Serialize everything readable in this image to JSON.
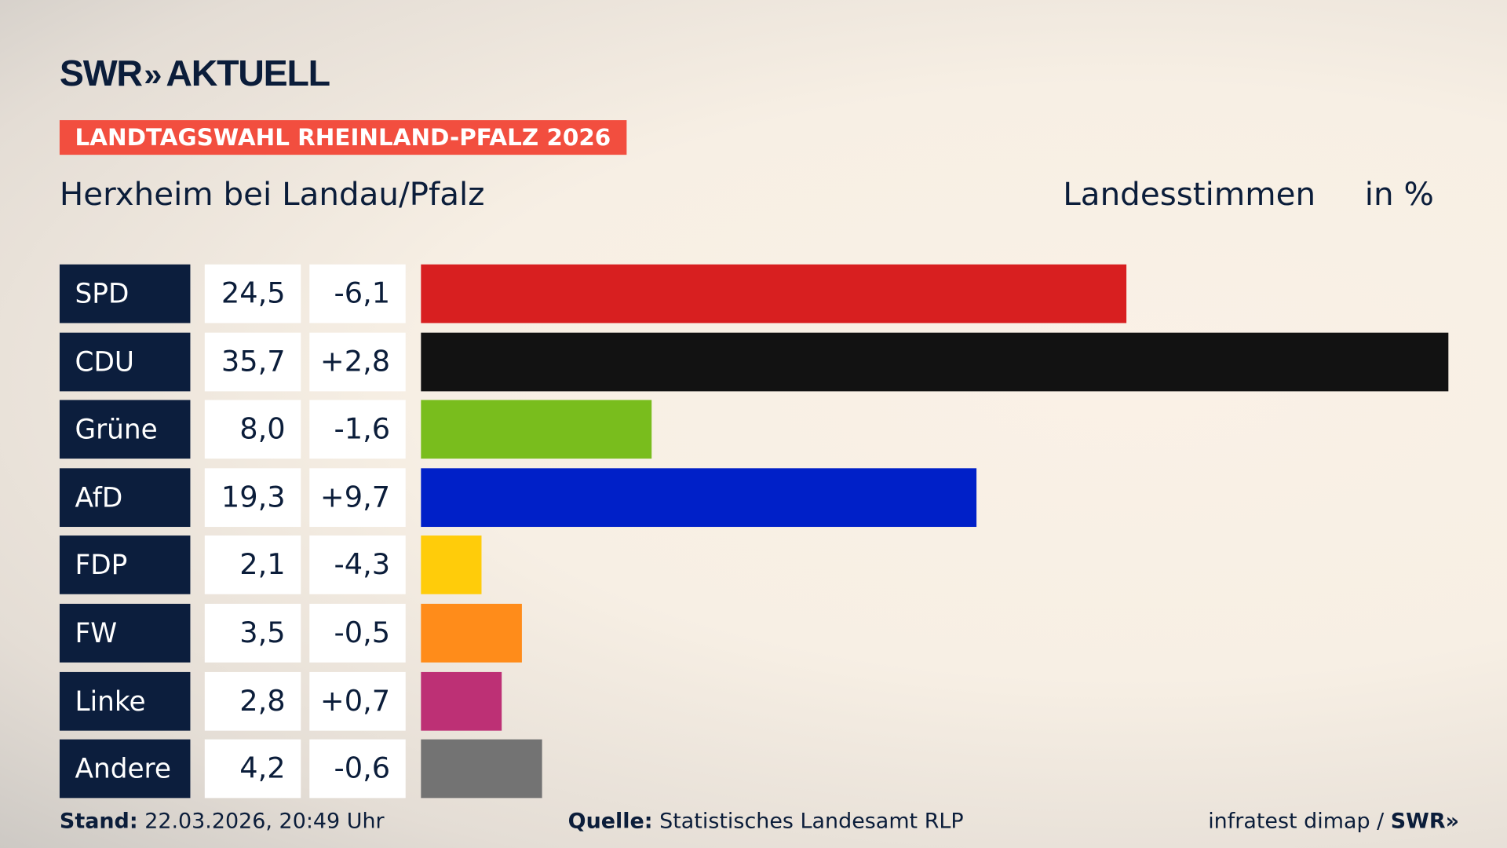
{
  "brand": {
    "logo": "SWR AKTUELL",
    "logo_swr": "SWR",
    "logo_chevrons": "»",
    "logo_aktuell": "AKTUELL"
  },
  "banner": "LANDTAGSWAHL RHEINLAND-PFALZ 2026",
  "subtitle": "Herxheim bei Landau/Pfalz",
  "header_votes": "Landesstimmen",
  "header_unit": "in %",
  "chart_data": {
    "type": "bar",
    "orientation": "horizontal",
    "categories": [
      "SPD",
      "CDU",
      "Grüne",
      "AfD",
      "FDP",
      "FW",
      "Linke",
      "Andere"
    ],
    "values": [
      24.5,
      35.7,
      8.0,
      19.3,
      2.1,
      3.5,
      2.8,
      4.2
    ],
    "value_labels": [
      "24,5",
      "35,7",
      "8,0",
      "19,3",
      "2,1",
      "3,5",
      "2,8",
      "4,2"
    ],
    "changes": [
      -6.1,
      2.8,
      -1.6,
      9.7,
      -4.3,
      -0.5,
      0.7,
      -0.6
    ],
    "change_labels": [
      "-6,1",
      "+2,8",
      "-1,6",
      "+9,7",
      "-4,3",
      "-0,5",
      "+0,7",
      "-0,6"
    ],
    "colors": [
      "#d81f20",
      "#121212",
      "#79bd1d",
      "#0020c8",
      "#ffcc0a",
      "#ff8c1a",
      "#bd3075",
      "#737373"
    ],
    "xlim": [
      0,
      35.7
    ],
    "grid": false,
    "title": "",
    "xlabel": "",
    "ylabel": ""
  },
  "footer": {
    "stand_label": "Stand:",
    "stand_value": "22.03.2026, 20:49 Uhr",
    "source_label": "Quelle:",
    "source_value": "Statistisches Landesamt RLP",
    "credit": "infratest dimap / ",
    "credit_logo": "SWR»"
  }
}
